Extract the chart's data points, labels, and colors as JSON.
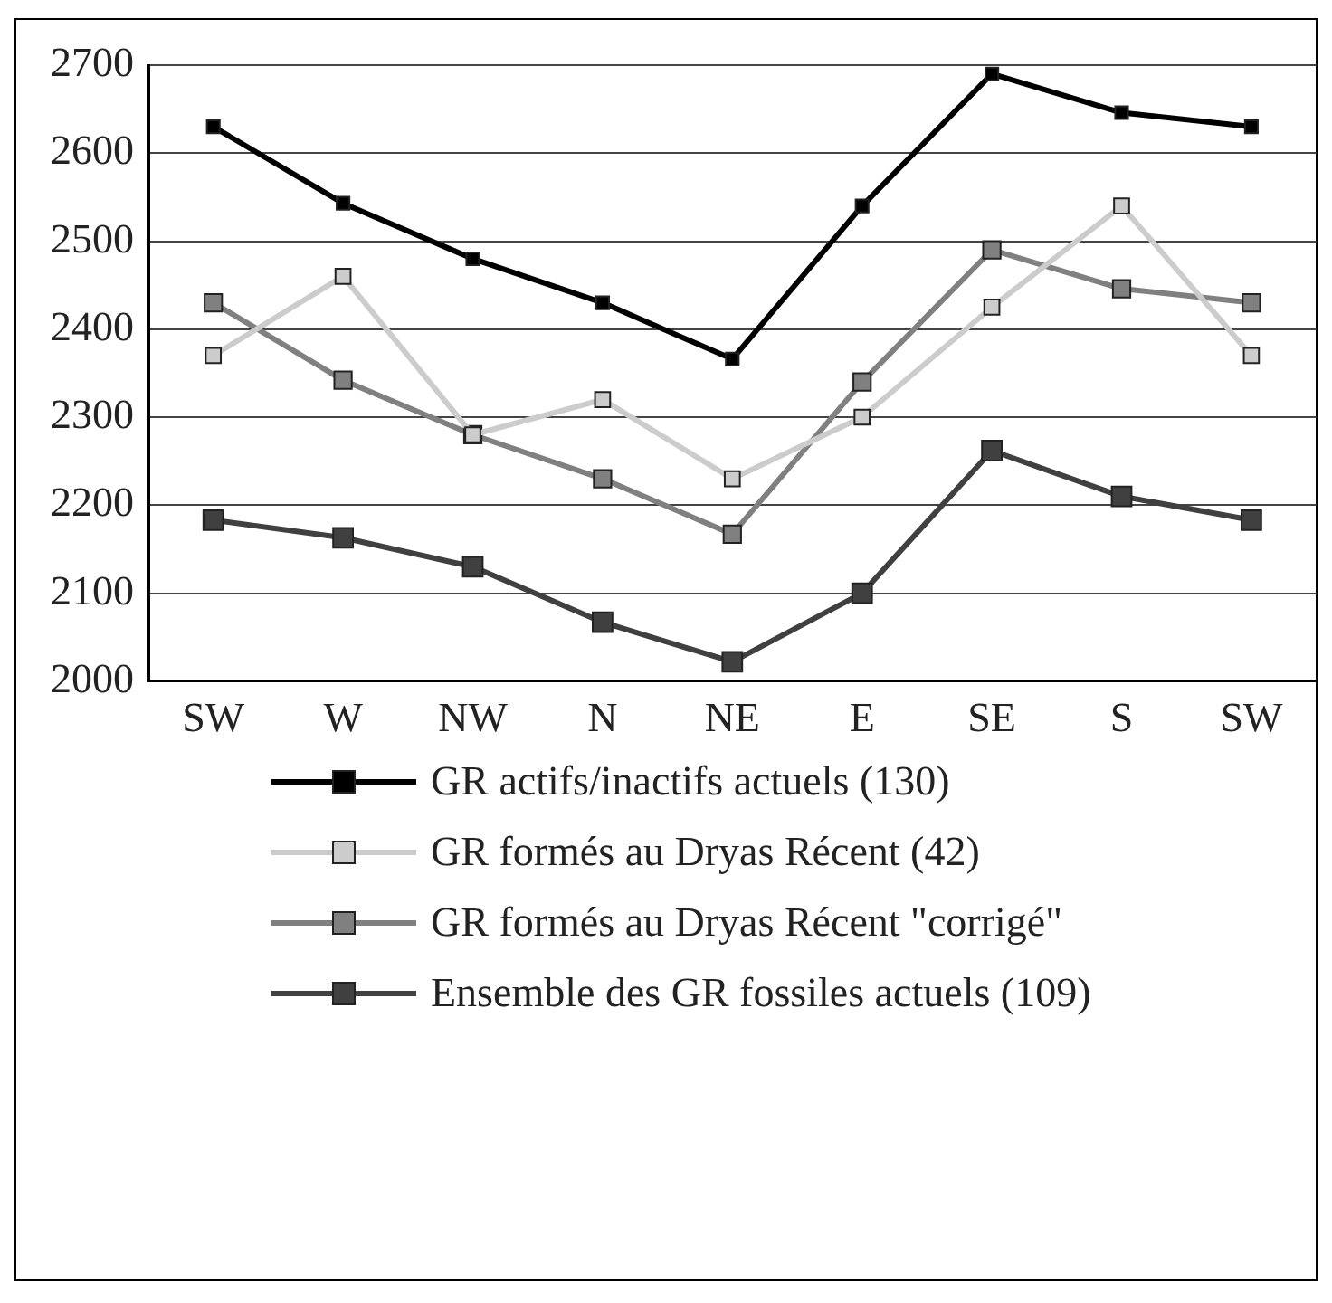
{
  "chart_data": {
    "type": "line",
    "categories": [
      "SW",
      "W",
      "NW",
      "N",
      "NE",
      "E",
      "SE",
      "S",
      "SW"
    ],
    "series": [
      {
        "name": "GR actifs/inactifs actuels (130)",
        "color": "#000000",
        "values": [
          2630,
          2543,
          2480,
          2430,
          2366,
          2540,
          2690,
          2646,
          2630
        ]
      },
      {
        "name": "GR formés au Dryas Récent (42)",
        "color": "#cccccc",
        "values": [
          2370,
          2460,
          2280,
          2320,
          2230,
          2300,
          2425,
          2540,
          2370
        ]
      },
      {
        "name": "GR formés au Dryas Récent \"corrigé\"",
        "color": "#808080",
        "values": [
          2430,
          2342,
          2280,
          2230,
          2167,
          2340,
          2490,
          2446,
          2430
        ]
      },
      {
        "name": "Ensemble des GR fossiles actuels (109)",
        "color": "#404040",
        "values": [
          2183,
          2163,
          2130,
          2067,
          2022,
          2100,
          2262,
          2210,
          2183
        ]
      }
    ],
    "ylim": [
      2000,
      2700
    ],
    "yticks": [
      2000,
      2100,
      2200,
      2300,
      2400,
      2500,
      2600,
      2700
    ],
    "grid": "y",
    "legend": "bottom",
    "marker": "square",
    "line_style": "solid"
  }
}
